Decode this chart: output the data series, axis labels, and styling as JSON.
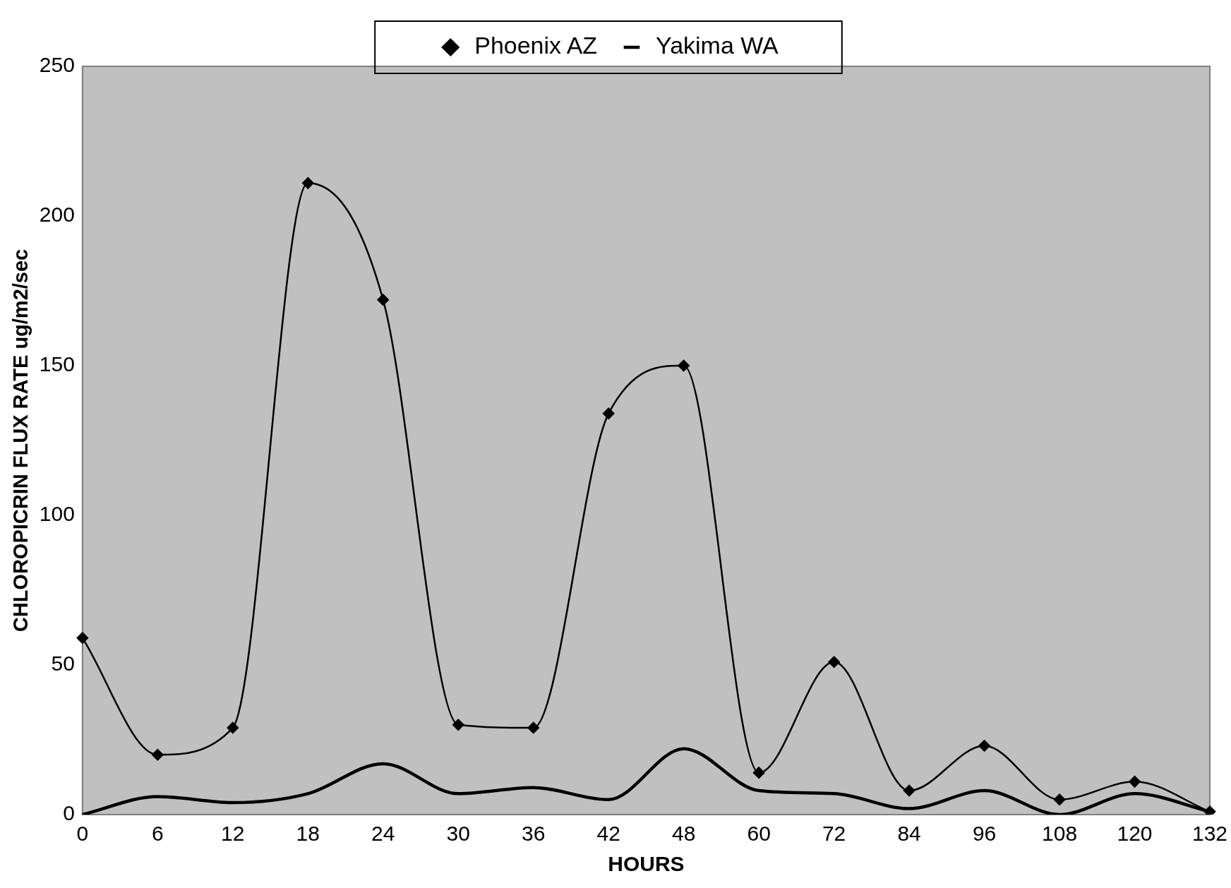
{
  "chart_data": {
    "type": "line",
    "xlabel": "HOURS",
    "ylabel": "CHLOROPICRIN FLUX RATE ug/m2/sec",
    "categories": [
      "0",
      "6",
      "12",
      "18",
      "24",
      "30",
      "36",
      "42",
      "48",
      "60",
      "72",
      "84",
      "96",
      "108",
      "120",
      "132"
    ],
    "series": [
      {
        "name": "Phoenix AZ",
        "color": "#000000",
        "marker": "diamond",
        "values": [
          59,
          20,
          29,
          211,
          172,
          30,
          29,
          134,
          150,
          14,
          51,
          8,
          23,
          5,
          11,
          1
        ]
      },
      {
        "name": "Yakima WA",
        "color": "#000000",
        "marker": "none",
        "values": [
          0,
          6,
          4,
          7,
          17,
          7,
          9,
          5,
          22,
          8,
          7,
          2,
          8,
          0,
          7,
          1
        ]
      }
    ],
    "ylim": [
      0,
      250
    ],
    "yticks": [
      0,
      50,
      100,
      150,
      200,
      250
    ],
    "grid": false,
    "legend": "top"
  }
}
